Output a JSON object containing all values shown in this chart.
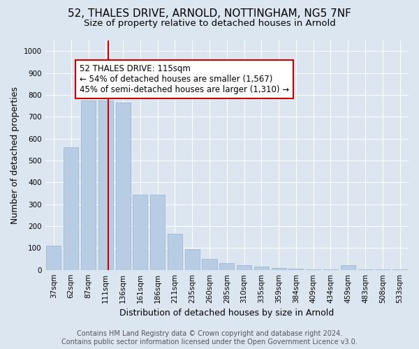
{
  "title": "52, THALES DRIVE, ARNOLD, NOTTINGHAM, NG5 7NF",
  "subtitle": "Size of property relative to detached houses in Arnold",
  "xlabel": "Distribution of detached houses by size in Arnold",
  "ylabel": "Number of detached properties",
  "categories": [
    "37sqm",
    "62sqm",
    "87sqm",
    "111sqm",
    "136sqm",
    "161sqm",
    "186sqm",
    "211sqm",
    "235sqm",
    "260sqm",
    "285sqm",
    "310sqm",
    "335sqm",
    "359sqm",
    "384sqm",
    "409sqm",
    "434sqm",
    "459sqm",
    "483sqm",
    "508sqm",
    "533sqm"
  ],
  "values": [
    110,
    560,
    775,
    775,
    765,
    345,
    345,
    165,
    95,
    50,
    30,
    20,
    15,
    10,
    5,
    3,
    2,
    20,
    2,
    1,
    1
  ],
  "bar_color": "#b8cce4",
  "bar_edge_color": "#9ab8d8",
  "background_color": "#dce6f1",
  "plot_bg_color": "#dce6f1",
  "grid_color": "#ffffff",
  "vline_color": "#cc0000",
  "annotation_text": "52 THALES DRIVE: 115sqm\n← 54% of detached houses are smaller (1,567)\n45% of semi-detached houses are larger (1,310) →",
  "annotation_box_edge": "#cc0000",
  "ylim": [
    0,
    1050
  ],
  "yticks": [
    0,
    100,
    200,
    300,
    400,
    500,
    600,
    700,
    800,
    900,
    1000
  ],
  "footer_line1": "Contains HM Land Registry data © Crown copyright and database right 2024.",
  "footer_line2": "Contains public sector information licensed under the Open Government Licence v3.0.",
  "title_fontsize": 11,
  "subtitle_fontsize": 9.5,
  "axis_label_fontsize": 9,
  "tick_fontsize": 7.5,
  "annotation_fontsize": 8.5,
  "footer_fontsize": 7
}
